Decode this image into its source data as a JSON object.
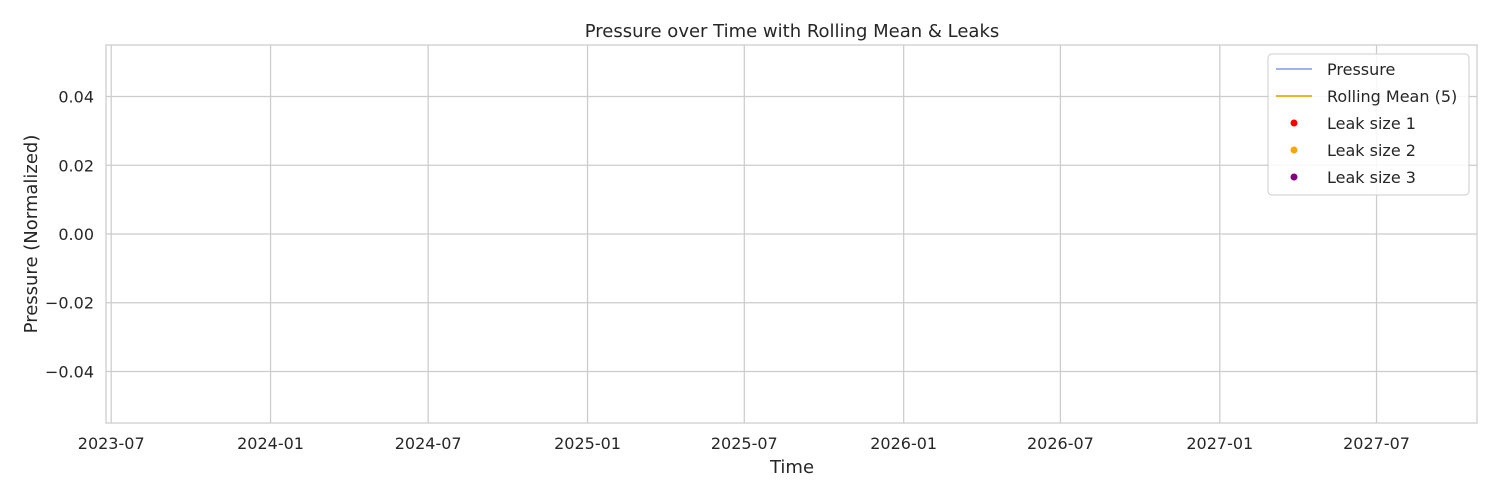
{
  "chart_data": {
    "type": "line",
    "title": "Pressure over Time with Rolling Mean & Leaks",
    "xlabel": "Time",
    "ylabel": "Pressure (Normalized)",
    "x_ticks": [
      "2023-07",
      "2024-01",
      "2024-07",
      "2025-01",
      "2025-07",
      "2026-01",
      "2026-07",
      "2027-01",
      "2027-07"
    ],
    "x_range": [
      "2023-06-25",
      "2027-10-25"
    ],
    "y_ticks": [
      0.04,
      0.02,
      0.0,
      -0.02,
      -0.04
    ],
    "y_tick_labels": [
      "0.04",
      "0.02",
      "0.00",
      "−0.02",
      "−0.04"
    ],
    "ylim": [
      -0.055,
      0.055
    ],
    "grid": true,
    "legend_position": "top-right",
    "series": [
      {
        "name": "Pressure",
        "kind": "line",
        "color": "#8fa8f0",
        "x": [],
        "y": []
      },
      {
        "name": "Rolling Mean (5)",
        "kind": "line",
        "color": "#f2a900",
        "x": [],
        "y": []
      },
      {
        "name": "Leak size 1",
        "kind": "scatter",
        "color": "#ff0000",
        "x": [],
        "y": []
      },
      {
        "name": "Leak size 2",
        "kind": "scatter",
        "color": "#ffa500",
        "x": [],
        "y": []
      },
      {
        "name": "Leak size 3",
        "kind": "scatter",
        "color": "#800080",
        "x": [],
        "y": []
      }
    ]
  }
}
